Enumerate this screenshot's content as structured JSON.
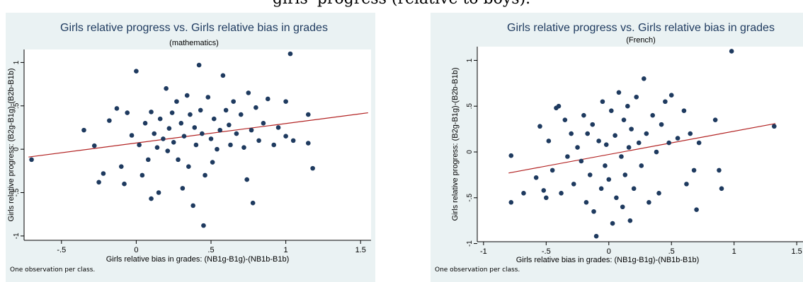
{
  "figure_caption": "girls' progress (relative to boys).",
  "chart_data": [
    {
      "type": "scatter",
      "title": "Girls relative progress vs. Girls relative bias in grades",
      "subtitle": "(mathematics)",
      "xlabel": "Girls relative bias in grades: (NB1g-B1g)-(NB1b-B1b)",
      "ylabel": "Girls relative progress: (B2g-B1g)-(B2b-B1b)",
      "note": "One observation per class.",
      "xlim": [
        -0.75,
        1.57
      ],
      "ylim": [
        -1.05,
        1.15
      ],
      "xticks": [
        -0.5,
        0,
        0.5,
        1,
        1.5
      ],
      "xtick_labels": [
        "-.5",
        "0",
        ".5",
        "1",
        "1.5"
      ],
      "yticks": [
        -1,
        -0.5,
        0,
        0.5,
        1
      ],
      "ytick_labels": [
        "-1",
        "-.5",
        "0",
        ".5",
        "1"
      ],
      "grid": false,
      "colors": {
        "points": "#1e3a5f",
        "fit_line": "#b22222",
        "plot_bg": "#ffffff",
        "panel_bg": "#eaf2f3"
      },
      "fit_line": {
        "x": [
          -0.72,
          1.55
        ],
        "y": [
          -0.09,
          0.42
        ]
      },
      "points": [
        {
          "x": -0.7,
          "y": -0.12
        },
        {
          "x": -0.35,
          "y": 0.22
        },
        {
          "x": -0.28,
          "y": 0.04
        },
        {
          "x": -0.25,
          "y": -0.38
        },
        {
          "x": -0.22,
          "y": -0.28
        },
        {
          "x": -0.18,
          "y": 0.33
        },
        {
          "x": -0.13,
          "y": 0.47
        },
        {
          "x": -0.1,
          "y": -0.2
        },
        {
          "x": -0.08,
          "y": -0.4
        },
        {
          "x": -0.06,
          "y": 0.42
        },
        {
          "x": -0.03,
          "y": 0.16
        },
        {
          "x": 0.0,
          "y": 0.9
        },
        {
          "x": 0.02,
          "y": 0.05
        },
        {
          "x": 0.04,
          "y": -0.3
        },
        {
          "x": 0.06,
          "y": 0.3
        },
        {
          "x": 0.08,
          "y": -0.12
        },
        {
          "x": 0.1,
          "y": 0.43
        },
        {
          "x": 0.1,
          "y": -0.57
        },
        {
          "x": 0.12,
          "y": 0.18
        },
        {
          "x": 0.14,
          "y": 0.02
        },
        {
          "x": 0.15,
          "y": -0.5
        },
        {
          "x": 0.16,
          "y": 0.35
        },
        {
          "x": 0.18,
          "y": 0.12
        },
        {
          "x": 0.2,
          "y": 0.7
        },
        {
          "x": 0.21,
          "y": -0.02
        },
        {
          "x": 0.22,
          "y": 0.24
        },
        {
          "x": 0.24,
          "y": 0.42
        },
        {
          "x": 0.25,
          "y": 0.08
        },
        {
          "x": 0.27,
          "y": 0.55
        },
        {
          "x": 0.28,
          "y": -0.12
        },
        {
          "x": 0.3,
          "y": 0.3
        },
        {
          "x": 0.31,
          "y": -0.45
        },
        {
          "x": 0.32,
          "y": 0.15
        },
        {
          "x": 0.34,
          "y": 0.62
        },
        {
          "x": 0.35,
          "y": -0.2
        },
        {
          "x": 0.36,
          "y": 0.4
        },
        {
          "x": 0.38,
          "y": -0.65
        },
        {
          "x": 0.39,
          "y": 0.25
        },
        {
          "x": 0.4,
          "y": 0.05
        },
        {
          "x": 0.42,
          "y": 0.97
        },
        {
          "x": 0.43,
          "y": 0.45
        },
        {
          "x": 0.44,
          "y": 0.18
        },
        {
          "x": 0.45,
          "y": -0.88
        },
        {
          "x": 0.46,
          "y": -0.3
        },
        {
          "x": 0.48,
          "y": 0.6
        },
        {
          "x": 0.5,
          "y": 0.12
        },
        {
          "x": 0.51,
          "y": -0.15
        },
        {
          "x": 0.52,
          "y": 0.35
        },
        {
          "x": 0.54,
          "y": 0.0
        },
        {
          "x": 0.56,
          "y": 0.22
        },
        {
          "x": 0.58,
          "y": 0.85
        },
        {
          "x": 0.6,
          "y": 0.45
        },
        {
          "x": 0.62,
          "y": 0.28
        },
        {
          "x": 0.63,
          "y": 0.05
        },
        {
          "x": 0.65,
          "y": 0.55
        },
        {
          "x": 0.67,
          "y": 0.18
        },
        {
          "x": 0.7,
          "y": 0.4
        },
        {
          "x": 0.72,
          "y": 0.02
        },
        {
          "x": 0.74,
          "y": -0.35
        },
        {
          "x": 0.75,
          "y": 0.65
        },
        {
          "x": 0.77,
          "y": 0.22
        },
        {
          "x": 0.78,
          "y": -0.62
        },
        {
          "x": 0.8,
          "y": 0.48
        },
        {
          "x": 0.82,
          "y": 0.1
        },
        {
          "x": 0.85,
          "y": 0.3
        },
        {
          "x": 0.88,
          "y": 0.58
        },
        {
          "x": 0.92,
          "y": 0.05
        },
        {
          "x": 0.95,
          "y": 0.25
        },
        {
          "x": 1.0,
          "y": 0.55
        },
        {
          "x": 1.0,
          "y": 0.15
        },
        {
          "x": 1.03,
          "y": 1.1
        },
        {
          "x": 1.05,
          "y": 0.1
        },
        {
          "x": 1.15,
          "y": 0.4
        },
        {
          "x": 1.18,
          "y": -0.22
        },
        {
          "x": 1.15,
          "y": 0.07
        }
      ]
    },
    {
      "type": "scatter",
      "title": "Girls relative progress vs. Girls relative bias in grades",
      "subtitle": "(French)",
      "xlabel": "Girls relative bias in grades: (NB1g-B1g)-(NB1b-B1b)",
      "ylabel": "Girls relative progress: (B2g-B1g)-(B2b-B1b)",
      "note": "One observation per class.",
      "xlim": [
        -1.05,
        1.55
      ],
      "ylim": [
        -0.98,
        1.15
      ],
      "xticks": [
        -1,
        -0.5,
        0,
        0.5,
        1,
        1.5
      ],
      "xtick_labels": [
        "-1",
        "-.5",
        "0",
        ".5",
        "1",
        "1.5"
      ],
      "yticks": [
        -1,
        -0.5,
        0,
        0.5,
        1
      ],
      "ytick_labels": [
        "-1",
        "-.5",
        "0",
        ".5",
        "1"
      ],
      "grid": false,
      "colors": {
        "points": "#1e3a5f",
        "fit_line": "#b22222",
        "plot_bg": "#ffffff",
        "panel_bg": "#eaf2f3"
      },
      "fit_line": {
        "x": [
          -0.8,
          1.33
        ],
        "y": [
          -0.23,
          0.31
        ]
      },
      "points": [
        {
          "x": -0.78,
          "y": -0.04
        },
        {
          "x": -0.78,
          "y": -0.55
        },
        {
          "x": -0.68,
          "y": -0.45
        },
        {
          "x": -0.58,
          "y": -0.28
        },
        {
          "x": -0.55,
          "y": 0.28
        },
        {
          "x": -0.52,
          "y": -0.42
        },
        {
          "x": -0.5,
          "y": -0.5
        },
        {
          "x": -0.48,
          "y": 0.12
        },
        {
          "x": -0.45,
          "y": -0.2
        },
        {
          "x": -0.42,
          "y": 0.48
        },
        {
          "x": -0.4,
          "y": 0.5
        },
        {
          "x": -0.38,
          "y": -0.45
        },
        {
          "x": -0.35,
          "y": 0.35
        },
        {
          "x": -0.33,
          "y": -0.05
        },
        {
          "x": -0.3,
          "y": 0.2
        },
        {
          "x": -0.28,
          "y": -0.35
        },
        {
          "x": -0.25,
          "y": 0.05
        },
        {
          "x": -0.22,
          "y": -0.1
        },
        {
          "x": -0.2,
          "y": 0.4
        },
        {
          "x": -0.18,
          "y": -0.55
        },
        {
          "x": -0.17,
          "y": 0.2
        },
        {
          "x": -0.15,
          "y": -0.25
        },
        {
          "x": -0.13,
          "y": 0.3
        },
        {
          "x": -0.12,
          "y": -0.65
        },
        {
          "x": -0.1,
          "y": -0.92
        },
        {
          "x": -0.08,
          "y": 0.12
        },
        {
          "x": -0.06,
          "y": -0.4
        },
        {
          "x": -0.05,
          "y": 0.55
        },
        {
          "x": -0.03,
          "y": -0.15
        },
        {
          "x": -0.02,
          "y": 0.08
        },
        {
          "x": 0.0,
          "y": -0.3
        },
        {
          "x": 0.02,
          "y": 0.45
        },
        {
          "x": 0.03,
          "y": -0.78
        },
        {
          "x": 0.05,
          "y": 0.18
        },
        {
          "x": 0.06,
          "y": -0.5
        },
        {
          "x": 0.08,
          "y": 0.65
        },
        {
          "x": 0.1,
          "y": -0.05
        },
        {
          "x": 0.11,
          "y": -0.6
        },
        {
          "x": 0.12,
          "y": 0.35
        },
        {
          "x": 0.13,
          "y": -0.25
        },
        {
          "x": 0.15,
          "y": 0.5
        },
        {
          "x": 0.16,
          "y": 0.05
        },
        {
          "x": 0.17,
          "y": -0.75
        },
        {
          "x": 0.18,
          "y": 0.25
        },
        {
          "x": 0.2,
          "y": -0.4
        },
        {
          "x": 0.22,
          "y": 0.6
        },
        {
          "x": 0.24,
          "y": 0.1
        },
        {
          "x": 0.26,
          "y": -0.15
        },
        {
          "x": 0.28,
          "y": 0.8
        },
        {
          "x": 0.3,
          "y": 0.2
        },
        {
          "x": 0.32,
          "y": -0.55
        },
        {
          "x": 0.35,
          "y": 0.4
        },
        {
          "x": 0.38,
          "y": 0.0
        },
        {
          "x": 0.4,
          "y": -0.45
        },
        {
          "x": 0.42,
          "y": 0.3
        },
        {
          "x": 0.45,
          "y": 0.55
        },
        {
          "x": 0.48,
          "y": 0.1
        },
        {
          "x": 0.5,
          "y": 0.62
        },
        {
          "x": 0.55,
          "y": 0.15
        },
        {
          "x": 0.6,
          "y": 0.45
        },
        {
          "x": 0.62,
          "y": -0.35
        },
        {
          "x": 0.65,
          "y": 0.2
        },
        {
          "x": 0.68,
          "y": -0.2
        },
        {
          "x": 0.7,
          "y": -0.63
        },
        {
          "x": 0.72,
          "y": 0.1
        },
        {
          "x": 0.85,
          "y": 0.35
        },
        {
          "x": 0.88,
          "y": -0.2
        },
        {
          "x": 0.9,
          "y": -0.4
        },
        {
          "x": 0.98,
          "y": 1.1
        },
        {
          "x": 1.32,
          "y": 0.28
        }
      ]
    }
  ]
}
